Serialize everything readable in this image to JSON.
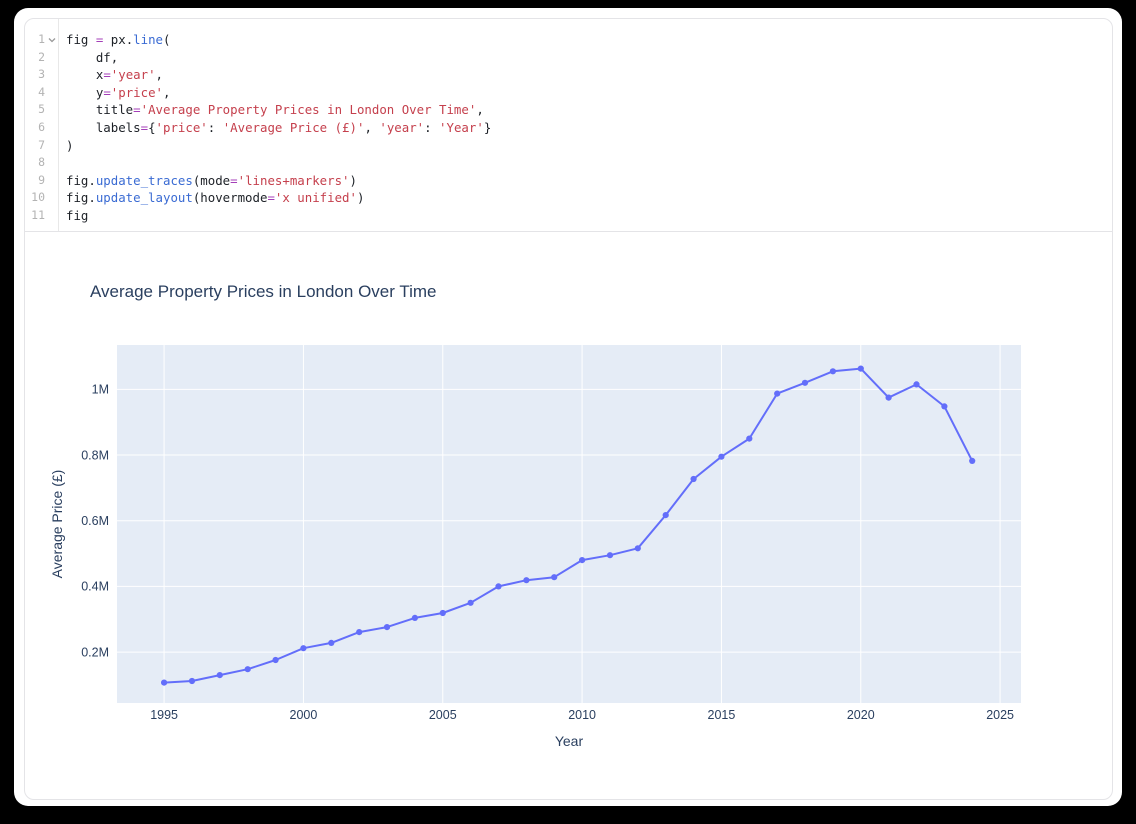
{
  "app": {
    "background": "#000000",
    "card_background": "#ffffff",
    "cell_border_color": "#e4e4e7"
  },
  "editor": {
    "line_number_color": "#b3b3b3",
    "token_colors": {
      "plain": "#1d2127",
      "operator": "#a43fb8",
      "string": "#c5404d",
      "function": "#3a6bd3"
    },
    "lines": [
      {
        "num": "1",
        "fold": true,
        "tokens": [
          [
            "fig ",
            "p"
          ],
          [
            "=",
            "o"
          ],
          [
            " px.",
            "p"
          ],
          [
            "line",
            "f"
          ],
          [
            "(",
            "p"
          ]
        ]
      },
      {
        "num": "2",
        "fold": false,
        "tokens": [
          [
            "    df,",
            "p"
          ]
        ]
      },
      {
        "num": "3",
        "fold": false,
        "tokens": [
          [
            "    x",
            "p"
          ],
          [
            "=",
            "o"
          ],
          [
            "'year'",
            "s"
          ],
          [
            ",",
            "p"
          ]
        ]
      },
      {
        "num": "4",
        "fold": false,
        "tokens": [
          [
            "    y",
            "p"
          ],
          [
            "=",
            "o"
          ],
          [
            "'price'",
            "s"
          ],
          [
            ",",
            "p"
          ]
        ]
      },
      {
        "num": "5",
        "fold": false,
        "tokens": [
          [
            "    title",
            "p"
          ],
          [
            "=",
            "o"
          ],
          [
            "'Average Property Prices in London Over Time'",
            "s"
          ],
          [
            ",",
            "p"
          ]
        ]
      },
      {
        "num": "6",
        "fold": false,
        "tokens": [
          [
            "    labels",
            "p"
          ],
          [
            "=",
            "o"
          ],
          [
            "{",
            "p"
          ],
          [
            "'price'",
            "s"
          ],
          [
            ": ",
            "p"
          ],
          [
            "'Average Price (£)'",
            "s"
          ],
          [
            ", ",
            "p"
          ],
          [
            "'year'",
            "s"
          ],
          [
            ": ",
            "p"
          ],
          [
            "'Year'",
            "s"
          ],
          [
            "}",
            "p"
          ]
        ]
      },
      {
        "num": "7",
        "fold": false,
        "tokens": [
          [
            ")",
            "p"
          ]
        ]
      },
      {
        "num": "8",
        "fold": false,
        "tokens": []
      },
      {
        "num": "9",
        "fold": false,
        "tokens": [
          [
            "fig.",
            "p"
          ],
          [
            "update_traces",
            "f"
          ],
          [
            "(mode",
            "p"
          ],
          [
            "=",
            "o"
          ],
          [
            "'lines+markers'",
            "s"
          ],
          [
            ")",
            "p"
          ]
        ]
      },
      {
        "num": "10",
        "fold": false,
        "tokens": [
          [
            "fig.",
            "p"
          ],
          [
            "update_layout",
            "f"
          ],
          [
            "(hovermode",
            "p"
          ],
          [
            "=",
            "o"
          ],
          [
            "'x unified'",
            "s"
          ],
          [
            ")",
            "p"
          ]
        ]
      },
      {
        "num": "11",
        "fold": false,
        "tokens": [
          [
            "fig",
            "p"
          ]
        ]
      }
    ]
  },
  "chart_data": {
    "type": "line",
    "mode": "lines+markers",
    "title": "Average Property Prices in London Over Time",
    "xlabel": "Year",
    "ylabel": "Average Price (£)",
    "x": [
      1995,
      1996,
      1997,
      1998,
      1999,
      2000,
      2001,
      2002,
      2003,
      2004,
      2005,
      2006,
      2007,
      2008,
      2009,
      2010,
      2011,
      2012,
      2013,
      2014,
      2015,
      2016,
      2017,
      2018,
      2019,
      2020,
      2021,
      2022,
      2023,
      2024
    ],
    "series": [
      {
        "name": "price",
        "values": [
          107000,
          112000,
          130000,
          148000,
          176000,
          212000,
          228000,
          261000,
          276000,
          304000,
          319000,
          350000,
          400000,
          419000,
          428000,
          480000,
          495000,
          516000,
          617000,
          727000,
          795000,
          850000,
          987000,
          1020000,
          1055000,
          1063000,
          975000,
          1015000,
          948000,
          782000
        ]
      }
    ],
    "xlim": [
      1993.31,
      2025.75
    ],
    "ylim": [
      45000,
      1135000
    ],
    "xticks": [
      1995,
      2000,
      2005,
      2010,
      2015,
      2020,
      2025
    ],
    "yticks": [
      200000,
      400000,
      600000,
      800000,
      1000000
    ],
    "ytick_labels": [
      "0.2M",
      "0.4M",
      "0.6M",
      "0.8M",
      "1M"
    ],
    "grid": true,
    "legend": false,
    "colors": {
      "series_line": "#636efa",
      "plot_background": "#e5ecf6",
      "grid": "#ffffff",
      "text": "#2a3f5f"
    }
  }
}
